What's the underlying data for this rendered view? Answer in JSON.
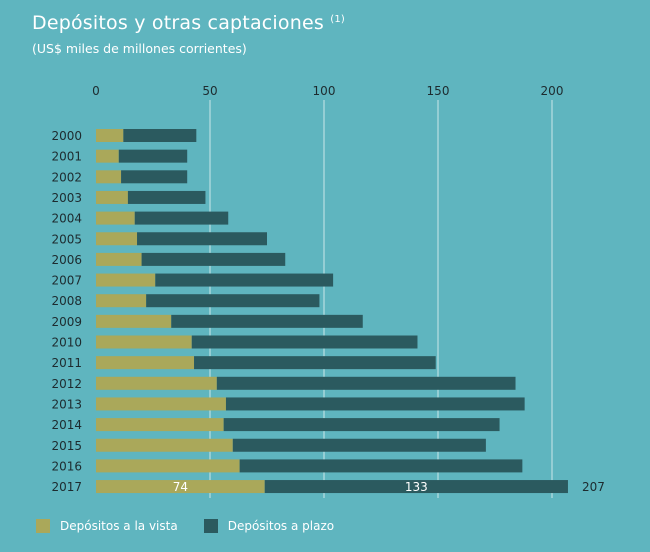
{
  "header": {
    "title": "Depósitos y otras captaciones",
    "title_note": "(1)",
    "subtitle": "(US$ miles de millones corrientes)"
  },
  "colors": {
    "background": "#5fb5bf",
    "vista": "#aaa85a",
    "plazo": "#2b5a5f",
    "gridline": "#ffffff"
  },
  "chart_data": {
    "type": "bar",
    "orientation": "horizontal",
    "stacked": true,
    "categories": [
      "2000",
      "2001",
      "2002",
      "2003",
      "2004",
      "2005",
      "2006",
      "2007",
      "2008",
      "2009",
      "2010",
      "2011",
      "2012",
      "2013",
      "2014",
      "2015",
      "2016",
      "2017"
    ],
    "series": [
      {
        "name": "Depósitos a la vista",
        "values": [
          12,
          10,
          11,
          14,
          17,
          18,
          20,
          26,
          22,
          33,
          42,
          43,
          53,
          57,
          56,
          60,
          63,
          74
        ]
      },
      {
        "name": "Depósitos a plazo",
        "values": [
          32,
          30,
          29,
          34,
          41,
          57,
          63,
          78,
          76,
          84,
          99,
          106,
          131,
          131,
          121,
          111,
          124,
          133
        ]
      }
    ],
    "xlim": [
      0,
      220
    ],
    "xticks": [
      0,
      50,
      100,
      150,
      200
    ],
    "gridlines": true,
    "x_axis_position": "top",
    "annotations": {
      "last_vista_label": "74",
      "last_plazo_label": "133",
      "last_total_label": "207"
    },
    "legend_position": "bottom-left"
  },
  "legend": {
    "vista_label": "Depósitos a la vista",
    "plazo_label": "Depósitos a plazo"
  }
}
